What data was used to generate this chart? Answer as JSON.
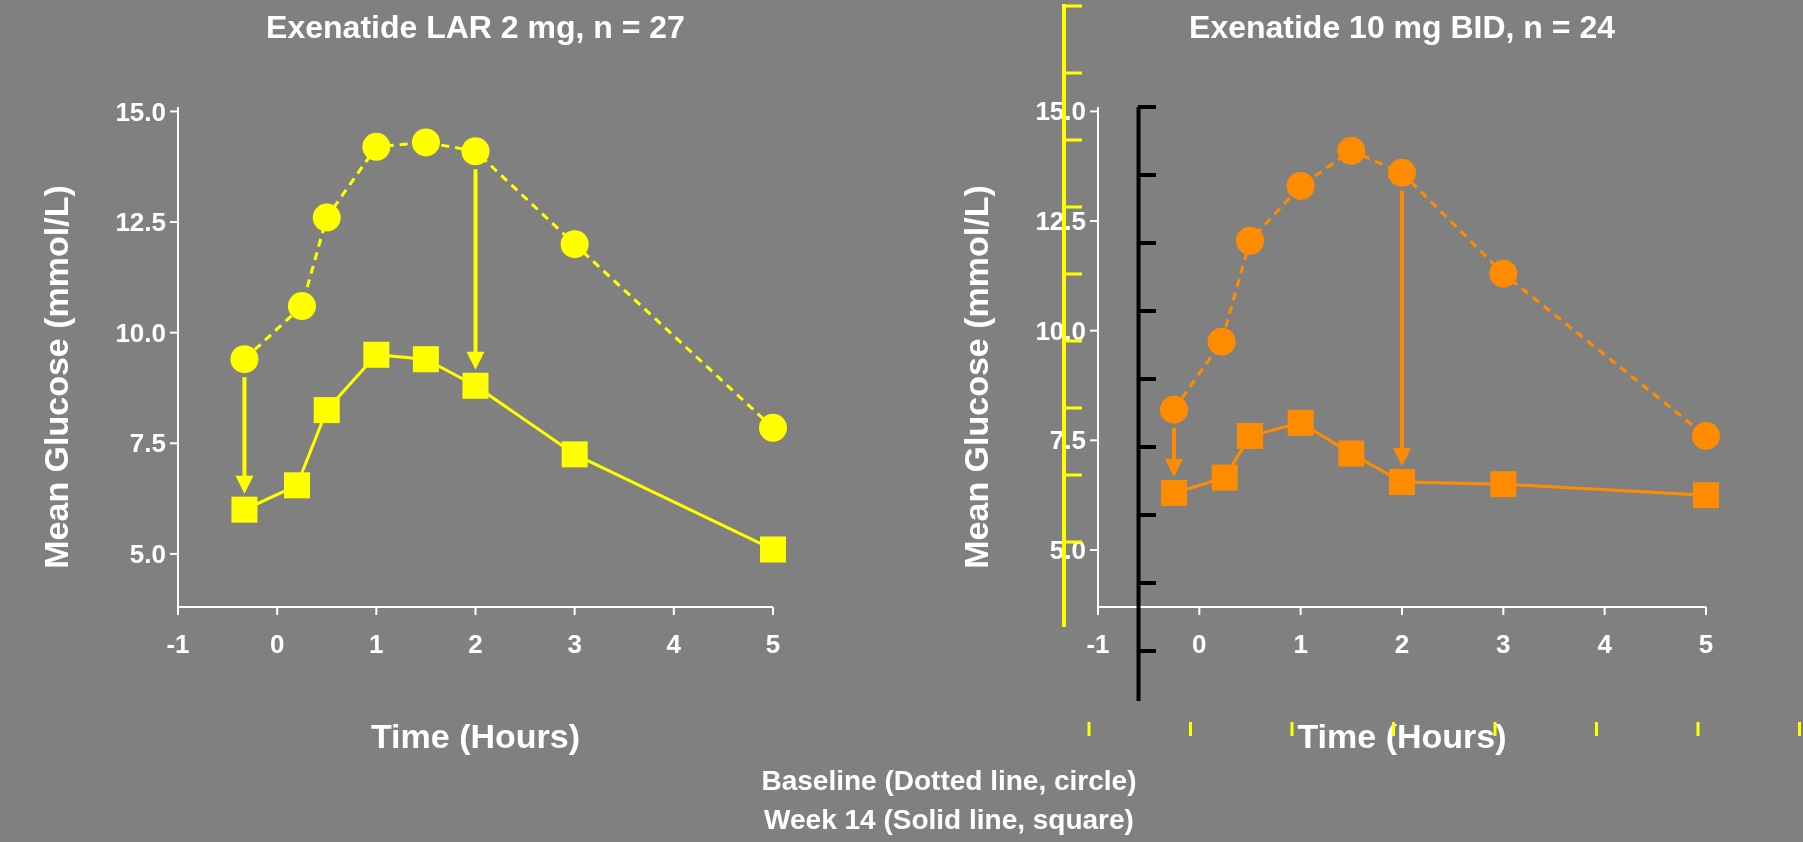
{
  "chart_data": [
    {
      "type": "line",
      "title": "Exenatide LAR 2 mg, n = 27",
      "xlabel": "Time (Hours)",
      "ylabel": "Mean Glucose (mmol/L)",
      "xlim": [
        -1,
        5
      ],
      "ylim": [
        3.8,
        15.1
      ],
      "xticks": [
        -1,
        0,
        1,
        2,
        3,
        4,
        5
      ],
      "yticks": [
        {
          "value": 5,
          "label": "5.0"
        },
        {
          "value": 7.5,
          "label": "7.5"
        },
        {
          "value": 10,
          "label": "10.0"
        },
        {
          "value": 12.5,
          "label": "12.5"
        },
        {
          "value": 15,
          "label": "15.0"
        }
      ],
      "annotations": [
        "Baseline (Dotted line, circle)",
        "Week 14 (Solid line, square)"
      ],
      "series": [
        {
          "color": "#ffff00",
          "line_style": "dashed",
          "marker": "circle",
          "x": [
            -0.33,
            0.25,
            0.5,
            1,
            1.5,
            2,
            3,
            5
          ],
          "values": [
            9.4,
            10.6,
            12.6,
            14.2,
            14.3,
            14.1,
            12.0,
            7.85
          ]
        },
        {
          "color": "#ffff00",
          "line_style": "solid",
          "marker": "square",
          "x": [
            -0.33,
            0.2,
            0.5,
            1,
            1.5,
            2,
            3,
            5
          ],
          "values": [
            6.0,
            6.55,
            8.25,
            9.5,
            9.4,
            8.8,
            7.25,
            5.1
          ]
        }
      ]
    },
    {
      "type": "line",
      "title": "Exenatide 10 mg BID, n = 24",
      "xlabel": "Time (Hours)",
      "ylabel": "Mean Glucose (mmol/L)",
      "xlim": [
        -1,
        5
      ],
      "ylim": [
        3.7,
        15.1
      ],
      "xticks": [
        -1,
        0,
        1,
        2,
        3,
        4,
        5
      ],
      "yticks": [
        {
          "value": 5,
          "label": "5.0"
        },
        {
          "value": 7.5,
          "label": "7.5"
        },
        {
          "value": 10,
          "label": "10.0"
        },
        {
          "value": 12.5,
          "label": "12.5"
        },
        {
          "value": 15,
          "label": "15.0"
        }
      ],
      "ref_lines": [
        {
          "axis": "x",
          "value": -0.6,
          "color": "#000000"
        }
      ],
      "series": [
        {
          "color": "#ff8c00",
          "line_style": "dashed",
          "marker": "circle",
          "x": [
            -0.25,
            0.22,
            0.5,
            1,
            1.5,
            2,
            3,
            5
          ],
          "values": [
            8.2,
            9.75,
            12.05,
            13.3,
            14.1,
            13.6,
            11.3,
            7.6
          ]
        },
        {
          "color": "#ff8c00",
          "line_style": "solid",
          "marker": "square",
          "x": [
            -0.25,
            0.25,
            0.5,
            1,
            1.5,
            2,
            3,
            5
          ],
          "values": [
            6.3,
            6.65,
            7.6,
            7.9,
            7.2,
            6.55,
            6.5,
            6.25
          ]
        }
      ]
    }
  ]
}
